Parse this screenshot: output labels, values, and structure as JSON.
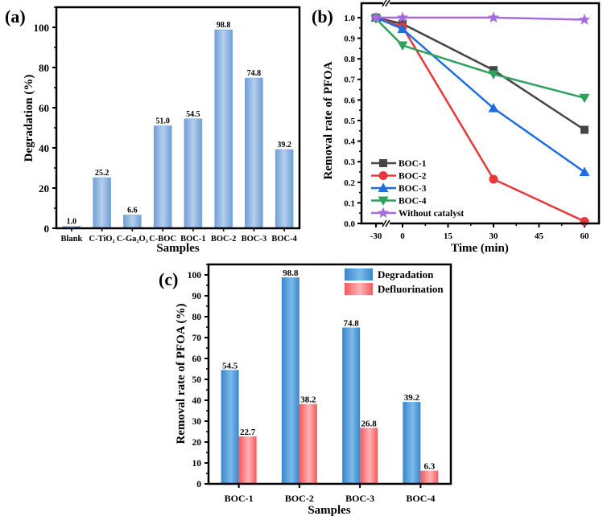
{
  "chart_data": [
    {
      "panel": "(a)",
      "type": "bar",
      "title": "",
      "xlabel": "Samples",
      "ylabel": "Degradation (%)",
      "ylim": [
        0,
        110
      ],
      "yticks": [
        0,
        20,
        40,
        60,
        80,
        100
      ],
      "categories": [
        "Blank",
        "C-TiO2",
        "C-Ga2O3",
        "C-BOC",
        "BOC-1",
        "BOC-2",
        "BOC-3",
        "BOC-4"
      ],
      "category_labels_display": [
        "Blank",
        "C-TiO₂",
        "C-Ga₂O₃",
        "C-BOC",
        "BOC-1",
        "BOC-2",
        "BOC-3",
        "BOC-4"
      ],
      "values": [
        1.0,
        25.2,
        6.6,
        51.0,
        54.5,
        98.8,
        74.8,
        39.2
      ],
      "data_labels": [
        "1.0",
        "25.2",
        "6.6",
        "51.0",
        "54.5",
        "98.8",
        "74.8",
        "39.2"
      ],
      "bar_color": "#8fb4de"
    },
    {
      "panel": "(b)",
      "type": "line",
      "title": "",
      "xlabel": "Time (min)",
      "ylabel": "Removal rate of PFOA",
      "x": [
        -30,
        0,
        30,
        60
      ],
      "xticks": [
        -30,
        0,
        15,
        30,
        45,
        60
      ],
      "axis_break": true,
      "ylim": [
        0,
        1.07
      ],
      "yticks": [
        0.0,
        0.1,
        0.2,
        0.3,
        0.4,
        0.5,
        0.6,
        0.7,
        0.8,
        0.9,
        1.0
      ],
      "legend_position": "bottom-left",
      "series": [
        {
          "name": "BOC-1",
          "marker": "square",
          "color": "#454545",
          "values": [
            1.0,
            0.97,
            0.745,
            0.455
          ]
        },
        {
          "name": "BOC-2",
          "marker": "circle",
          "color": "#e8383b",
          "values": [
            1.0,
            0.955,
            0.215,
            0.01
          ]
        },
        {
          "name": "BOC-3",
          "marker": "triangle-up",
          "color": "#1d6fde",
          "values": [
            1.0,
            0.945,
            0.56,
            0.25
          ]
        },
        {
          "name": "BOC-4",
          "marker": "triangle-down",
          "color": "#2ea25a",
          "values": [
            0.995,
            0.865,
            0.725,
            0.61
          ]
        },
        {
          "name": "Without catalyst",
          "marker": "star",
          "color": "#a66ddc",
          "values": [
            1.0,
            1.0,
            1.0,
            0.99
          ]
        }
      ]
    },
    {
      "panel": "(c)",
      "type": "bar",
      "title": "",
      "xlabel": "Samples",
      "ylabel": "Removal rate of PFOA (%)",
      "ylim": [
        0,
        105
      ],
      "yticks": [
        0,
        10,
        20,
        30,
        40,
        50,
        60,
        70,
        80,
        90,
        100
      ],
      "categories": [
        "BOC-1",
        "BOC-2",
        "BOC-3",
        "BOC-4"
      ],
      "legend_position": "top-right",
      "series": [
        {
          "name": "Degradation",
          "color": "#5ea3dc",
          "values": [
            54.5,
            98.8,
            74.8,
            39.2
          ],
          "data_labels": [
            "54.5",
            "98.8",
            "74.8",
            "39.2"
          ]
        },
        {
          "name": "Defluorination",
          "color": "#f47a7c",
          "values": [
            22.7,
            38.2,
            26.8,
            6.3
          ],
          "data_labels": [
            "22.7",
            "38.2",
            "26.8",
            "6.3"
          ]
        }
      ]
    }
  ]
}
